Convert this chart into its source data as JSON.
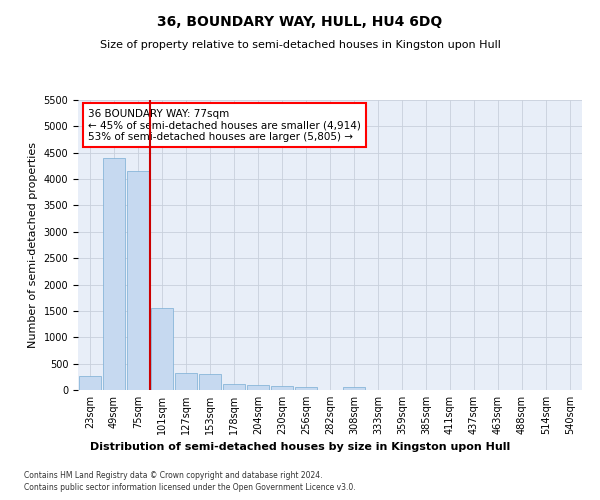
{
  "title": "36, BOUNDARY WAY, HULL, HU4 6DQ",
  "subtitle": "Size of property relative to semi-detached houses in Kingston upon Hull",
  "xlabel": "Distribution of semi-detached houses by size in Kingston upon Hull",
  "ylabel": "Number of semi-detached properties",
  "footer1": "Contains HM Land Registry data © Crown copyright and database right 2024.",
  "footer2": "Contains public sector information licensed under the Open Government Licence v3.0.",
  "categories": [
    "23sqm",
    "49sqm",
    "75sqm",
    "101sqm",
    "127sqm",
    "153sqm",
    "178sqm",
    "204sqm",
    "230sqm",
    "256sqm",
    "282sqm",
    "308sqm",
    "333sqm",
    "359sqm",
    "385sqm",
    "411sqm",
    "437sqm",
    "463sqm",
    "488sqm",
    "514sqm",
    "540sqm"
  ],
  "values": [
    270,
    4400,
    4150,
    1550,
    330,
    310,
    110,
    90,
    70,
    50,
    0,
    60,
    0,
    0,
    0,
    0,
    0,
    0,
    0,
    0,
    0
  ],
  "bar_color": "#c6d9f0",
  "bar_edge_color": "#7aadd4",
  "red_line_color": "#cc0000",
  "red_line_x": 2.5,
  "annotation_text": "36 BOUNDARY WAY: 77sqm\n← 45% of semi-detached houses are smaller (4,914)\n53% of semi-detached houses are larger (5,805) →",
  "annotation_box_color": "white",
  "annotation_box_edge": "red",
  "ylim": [
    0,
    5500
  ],
  "yticks": [
    0,
    500,
    1000,
    1500,
    2000,
    2500,
    3000,
    3500,
    4000,
    4500,
    5000,
    5500
  ],
  "grid_color": "#c8d0dc",
  "background_color": "#e8eef8",
  "title_fontsize": 10,
  "subtitle_fontsize": 8,
  "ylabel_fontsize": 8,
  "xlabel_fontsize": 8,
  "tick_fontsize": 7,
  "annotation_fontsize": 7.5
}
